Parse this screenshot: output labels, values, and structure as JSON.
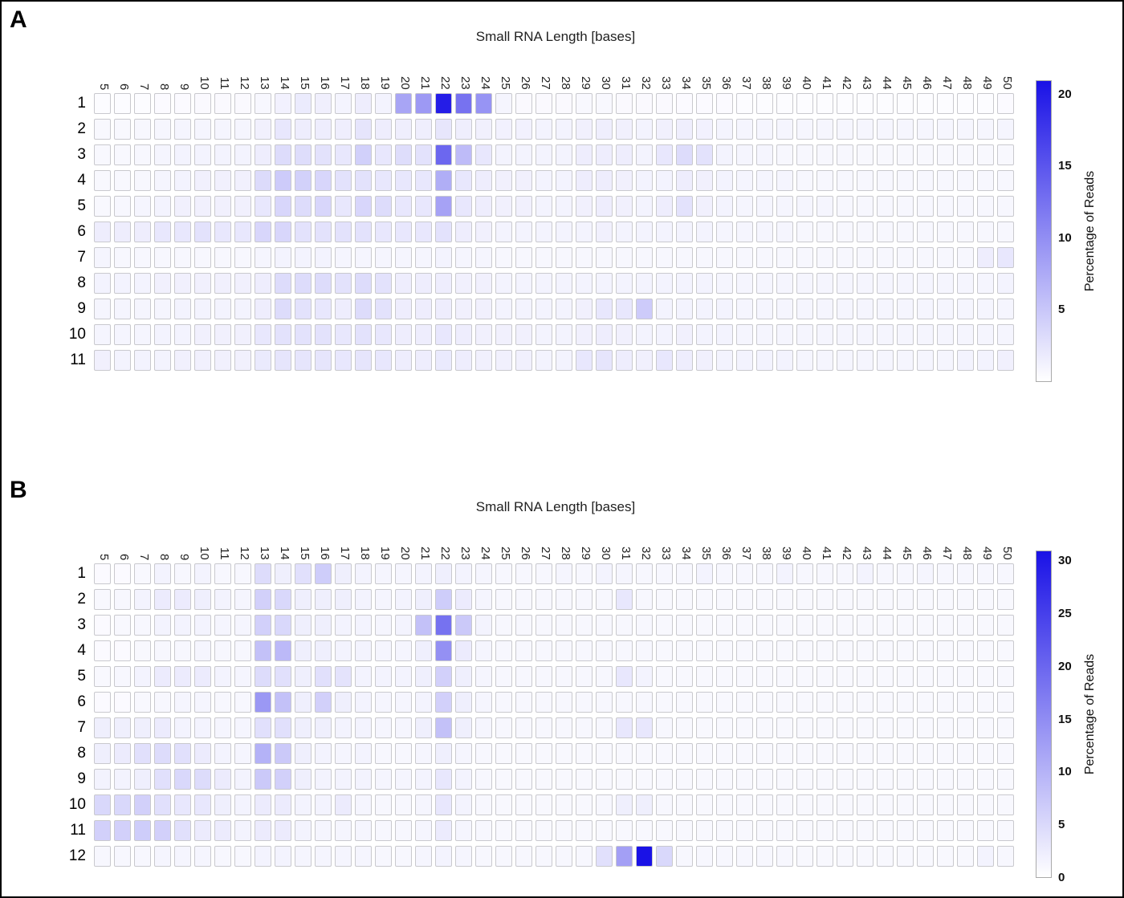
{
  "figure": {
    "panels": [
      "A",
      "B"
    ]
  },
  "chart_data": [
    {
      "type": "heatmap",
      "panel": "A",
      "title": "Small RNA Length [bases]",
      "colorbar_label": "Percentage of Reads",
      "x_ticks": [
        5,
        6,
        7,
        8,
        9,
        10,
        11,
        12,
        13,
        14,
        15,
        16,
        17,
        18,
        19,
        20,
        21,
        22,
        23,
        24,
        25,
        26,
        27,
        28,
        29,
        30,
        31,
        32,
        33,
        34,
        35,
        36,
        37,
        38,
        39,
        40,
        41,
        42,
        43,
        44,
        45,
        46,
        47,
        48,
        49,
        50
      ],
      "y_ticks": [
        "1",
        "2",
        "3",
        "4",
        "5",
        "6",
        "7",
        "8",
        "9",
        "10",
        "11"
      ],
      "vmin": 0,
      "vmax": 21,
      "colorbar_ticks": [
        20,
        15,
        10,
        5
      ],
      "min_color": "#ffffff",
      "max_color": "#1a12e6",
      "values": [
        [
          0.3,
          0.3,
          0.3,
          0.4,
          0.4,
          0.5,
          0.5,
          0.5,
          0.7,
          1.2,
          1.8,
          1.4,
          1.0,
          1.6,
          1.1,
          8,
          9,
          20,
          12.5,
          9.5,
          0.9,
          0.5,
          0.5,
          0.5,
          0.6,
          0.6,
          0.5,
          0.5,
          0.5,
          0.4,
          0.4,
          0.4,
          0.3,
          0.3,
          0.3,
          0.3,
          0.3,
          0.3,
          0.3,
          0.3,
          0.3,
          0.3,
          0.3,
          0.3,
          0.3,
          0.4
        ],
        [
          0.6,
          0.6,
          0.7,
          0.8,
          0.9,
          0.9,
          0.9,
          0.9,
          1.3,
          2.1,
          1.6,
          1.6,
          1.5,
          2.3,
          1.6,
          1.5,
          1.5,
          2.2,
          1.5,
          1.3,
          1.2,
          1.2,
          1.1,
          1.1,
          1.3,
          1.5,
          1.3,
          1.1,
          1.3,
          1.5,
          1.2,
          1.0,
          0.9,
          0.9,
          0.9,
          0.8,
          0.8,
          0.8,
          0.8,
          0.8,
          0.8,
          0.8,
          0.8,
          0.8,
          0.8,
          0.9
        ],
        [
          0.6,
          0.6,
          0.7,
          0.9,
          1.1,
          1.1,
          1.1,
          1.1,
          1.6,
          3.1,
          3.0,
          2.6,
          2.1,
          4.2,
          2.1,
          3.0,
          2.6,
          13.5,
          6.0,
          2.1,
          1.1,
          1.1,
          1.1,
          1.1,
          1.6,
          1.6,
          1.6,
          1.1,
          2.1,
          3.1,
          2.6,
          1.1,
          0.9,
          0.9,
          0.7,
          0.7,
          0.7,
          0.7,
          0.6,
          0.6,
          0.6,
          0.6,
          0.6,
          0.6,
          0.6,
          0.6
        ],
        [
          0.6,
          0.6,
          0.7,
          0.9,
          1.1,
          1.3,
          1.3,
          1.3,
          3.2,
          4.6,
          4.1,
          3.6,
          2.6,
          2.6,
          2.1,
          2.1,
          2.1,
          7.2,
          2.1,
          1.6,
          1.3,
          1.3,
          1.1,
          1.1,
          1.6,
          1.6,
          1.3,
          1.1,
          1.1,
          1.6,
          1.3,
          1.1,
          0.9,
          0.9,
          0.9,
          0.7,
          0.7,
          0.7,
          0.7,
          0.7,
          0.7,
          0.7,
          0.7,
          0.7,
          0.7,
          0.7
        ],
        [
          0.6,
          0.7,
          0.9,
          1.1,
          1.3,
          1.3,
          1.3,
          1.3,
          2.1,
          3.6,
          3.1,
          3.6,
          2.1,
          3.6,
          3.1,
          2.1,
          2.1,
          8.2,
          2.1,
          1.6,
          1.3,
          1.3,
          1.1,
          1.1,
          1.3,
          1.6,
          1.3,
          1.1,
          1.6,
          2.6,
          1.3,
          1.1,
          0.9,
          0.9,
          0.9,
          0.9,
          0.9,
          0.7,
          0.7,
          0.7,
          0.7,
          0.7,
          0.7,
          0.7,
          0.7,
          0.7
        ],
        [
          1.6,
          1.6,
          1.6,
          2.1,
          2.1,
          2.6,
          2.1,
          2.1,
          3.6,
          3.6,
          2.6,
          2.6,
          2.6,
          2.6,
          2.1,
          2.1,
          2.1,
          2.6,
          1.6,
          1.3,
          1.1,
          1.1,
          1.1,
          1.1,
          1.1,
          1.3,
          1.1,
          1.1,
          1.1,
          1.1,
          1.1,
          0.9,
          0.9,
          0.9,
          0.9,
          0.7,
          0.7,
          0.7,
          0.7,
          0.7,
          0.7,
          0.7,
          0.7,
          0.7,
          0.7,
          0.7
        ],
        [
          0.9,
          0.7,
          0.7,
          0.7,
          0.7,
          0.7,
          0.7,
          0.7,
          0.9,
          1.1,
          1.1,
          1.1,
          0.9,
          0.9,
          0.9,
          0.9,
          0.9,
          1.1,
          0.9,
          0.9,
          0.7,
          0.7,
          0.7,
          0.7,
          0.7,
          0.7,
          0.7,
          0.7,
          0.7,
          0.7,
          0.7,
          0.7,
          0.7,
          0.7,
          0.7,
          0.7,
          0.7,
          0.7,
          0.7,
          0.7,
          0.7,
          0.7,
          0.7,
          0.7,
          1.6,
          2.1
        ],
        [
          1.1,
          1.1,
          1.1,
          1.3,
          1.3,
          1.3,
          1.3,
          1.3,
          1.6,
          3.1,
          3.1,
          3.1,
          2.6,
          3.1,
          2.6,
          1.6,
          1.6,
          1.6,
          1.3,
          1.3,
          1.1,
          1.1,
          1.1,
          1.1,
          1.1,
          1.1,
          1.1,
          1.1,
          1.1,
          1.1,
          1.1,
          0.9,
          0.9,
          0.9,
          0.9,
          0.9,
          0.9,
          0.9,
          0.9,
          0.9,
          0.9,
          0.9,
          0.9,
          0.9,
          0.9,
          1.1
        ],
        [
          0.9,
          0.9,
          0.9,
          0.9,
          1.1,
          1.1,
          1.1,
          1.1,
          1.6,
          3.1,
          2.6,
          2.1,
          1.6,
          3.1,
          2.6,
          1.6,
          1.6,
          1.6,
          1.3,
          1.3,
          1.1,
          1.1,
          1.1,
          1.1,
          1.3,
          2.1,
          2.1,
          4.6,
          1.1,
          1.1,
          1.1,
          1.1,
          0.9,
          0.9,
          0.9,
          0.9,
          0.9,
          0.9,
          0.9,
          0.9,
          0.9,
          0.9,
          0.9,
          0.9,
          0.9,
          0.9
        ],
        [
          0.9,
          0.9,
          0.9,
          1.1,
          1.1,
          1.3,
          1.3,
          1.3,
          2.1,
          2.6,
          2.6,
          2.6,
          2.1,
          2.6,
          2.1,
          1.6,
          1.6,
          2.1,
          1.6,
          1.3,
          1.3,
          1.3,
          1.1,
          1.1,
          1.3,
          1.6,
          1.3,
          1.1,
          1.1,
          1.3,
          1.1,
          1.1,
          0.9,
          0.9,
          0.9,
          0.9,
          0.9,
          0.9,
          0.9,
          0.9,
          0.9,
          0.9,
          0.9,
          0.9,
          0.9,
          0.9
        ],
        [
          1.3,
          1.1,
          1.1,
          1.1,
          1.3,
          1.3,
          1.3,
          1.3,
          1.9,
          2.3,
          2.3,
          2.3,
          2.1,
          2.3,
          2.1,
          1.6,
          1.6,
          1.9,
          1.6,
          1.3,
          1.3,
          1.3,
          1.1,
          1.1,
          2.1,
          2.3,
          1.6,
          1.3,
          2.1,
          1.6,
          1.3,
          1.1,
          1.1,
          1.1,
          1.1,
          0.9,
          0.9,
          0.9,
          0.9,
          0.9,
          0.9,
          0.9,
          0.9,
          1.1,
          1.1,
          1.3
        ]
      ]
    },
    {
      "type": "heatmap",
      "panel": "B",
      "title": "Small RNA Length [bases]",
      "colorbar_label": "Percentage of Reads",
      "x_ticks": [
        5,
        6,
        7,
        8,
        9,
        10,
        11,
        12,
        13,
        14,
        15,
        16,
        17,
        18,
        19,
        20,
        21,
        22,
        23,
        24,
        25,
        26,
        27,
        28,
        29,
        30,
        31,
        32,
        33,
        34,
        35,
        36,
        37,
        38,
        39,
        40,
        41,
        42,
        43,
        44,
        45,
        46,
        47,
        48,
        49,
        50
      ],
      "y_ticks": [
        "1",
        "2",
        "3",
        "4",
        "5",
        "6",
        "7",
        "8",
        "9",
        "10",
        "11",
        "12"
      ],
      "vmin": 0,
      "vmax": 31,
      "colorbar_ticks": [
        30,
        25,
        20,
        15,
        10,
        5,
        0
      ],
      "min_color": "#ffffff",
      "max_color": "#1a12e6",
      "values": [
        [
          0.6,
          0.6,
          0.9,
          1.6,
          1.1,
          1.6,
          1.1,
          1.1,
          4.6,
          2.1,
          4.1,
          6.6,
          2.1,
          1.6,
          1.3,
          1.3,
          1.6,
          2.1,
          1.6,
          1.3,
          1.1,
          1.1,
          1.1,
          1.3,
          1.1,
          1.6,
          1.3,
          1.1,
          1.1,
          1.1,
          1.6,
          1.1,
          1.1,
          1.1,
          1.6,
          1.1,
          1.1,
          1.1,
          1.6,
          1.1,
          1.1,
          1.3,
          1.1,
          1.1,
          1.1,
          1.1
        ],
        [
          0.9,
          1.1,
          1.6,
          2.6,
          2.6,
          2.1,
          1.6,
          1.3,
          6.1,
          5.1,
          2.1,
          2.1,
          2.1,
          1.6,
          1.3,
          1.6,
          2.1,
          6.6,
          2.6,
          1.3,
          1.1,
          1.1,
          1.1,
          1.1,
          1.1,
          1.1,
          3.1,
          1.1,
          0.9,
          0.9,
          0.9,
          0.9,
          0.9,
          0.9,
          0.9,
          0.9,
          0.9,
          0.9,
          0.9,
          0.9,
          0.9,
          0.9,
          0.9,
          0.9,
          0.9,
          0.9
        ],
        [
          0.6,
          0.9,
          1.1,
          1.6,
          1.6,
          1.6,
          1.3,
          1.3,
          6.1,
          5.1,
          2.1,
          2.1,
          1.6,
          1.6,
          1.3,
          1.6,
          8.1,
          18.5,
          7.1,
          1.6,
          1.1,
          1.1,
          1.1,
          1.1,
          1.1,
          1.1,
          1.1,
          1.1,
          0.9,
          0.9,
          0.9,
          0.9,
          0.9,
          0.9,
          0.9,
          0.9,
          0.9,
          0.9,
          0.9,
          0.9,
          0.9,
          0.9,
          0.9,
          0.9,
          0.9,
          0.9
        ],
        [
          0.6,
          0.6,
          0.9,
          1.1,
          1.1,
          1.3,
          1.1,
          1.1,
          8.1,
          9.1,
          2.1,
          2.1,
          1.6,
          1.6,
          1.3,
          1.3,
          2.1,
          14.5,
          2.6,
          1.3,
          1.1,
          1.1,
          1.1,
          1.1,
          1.1,
          1.1,
          1.1,
          1.1,
          0.9,
          0.9,
          0.9,
          0.9,
          0.9,
          0.9,
          0.9,
          0.9,
          0.9,
          0.9,
          0.9,
          0.9,
          0.9,
          0.9,
          0.9,
          0.9,
          0.9,
          0.9
        ],
        [
          0.9,
          1.1,
          1.6,
          2.6,
          2.6,
          2.6,
          1.6,
          1.3,
          4.6,
          4.1,
          2.1,
          4.1,
          3.6,
          1.6,
          1.6,
          1.6,
          2.1,
          6.1,
          2.1,
          1.3,
          1.1,
          1.1,
          1.1,
          1.1,
          1.1,
          1.1,
          3.1,
          1.6,
          0.9,
          0.9,
          0.9,
          0.9,
          0.9,
          0.9,
          0.9,
          0.9,
          0.9,
          0.9,
          0.9,
          0.9,
          0.9,
          0.9,
          0.9,
          0.9,
          0.9,
          0.9
        ],
        [
          0.6,
          0.6,
          0.9,
          1.1,
          1.3,
          1.3,
          1.1,
          1.1,
          13.5,
          8.1,
          2.1,
          6.1,
          2.1,
          1.6,
          1.3,
          1.3,
          1.6,
          6.1,
          2.1,
          1.3,
          1.1,
          1.1,
          1.1,
          1.1,
          1.1,
          1.1,
          1.1,
          1.1,
          0.9,
          0.9,
          0.9,
          0.9,
          0.9,
          0.9,
          0.9,
          0.9,
          0.9,
          0.9,
          0.9,
          0.9,
          0.9,
          0.9,
          0.9,
          0.9,
          0.9,
          0.9
        ],
        [
          2.1,
          2.1,
          2.1,
          2.6,
          1.6,
          1.6,
          1.3,
          1.3,
          4.1,
          4.1,
          2.1,
          2.1,
          1.6,
          1.6,
          1.3,
          1.3,
          2.1,
          8.1,
          2.1,
          1.3,
          1.1,
          1.1,
          1.1,
          1.1,
          1.1,
          1.1,
          3.1,
          3.1,
          1.1,
          0.9,
          0.9,
          0.9,
          0.9,
          0.9,
          0.9,
          0.9,
          0.9,
          0.9,
          0.9,
          0.9,
          0.9,
          0.9,
          0.9,
          0.9,
          0.9,
          0.9
        ],
        [
          2.1,
          2.6,
          4.1,
          4.6,
          4.1,
          2.6,
          1.6,
          1.3,
          10.1,
          7.1,
          2.1,
          1.6,
          1.3,
          1.6,
          1.1,
          1.1,
          1.3,
          2.1,
          1.3,
          1.1,
          0.9,
          0.9,
          0.9,
          0.9,
          0.9,
          0.9,
          0.9,
          0.9,
          0.9,
          0.9,
          0.9,
          0.9,
          0.9,
          0.9,
          0.9,
          0.9,
          0.9,
          0.9,
          0.9,
          0.9,
          0.9,
          0.9,
          0.9,
          0.9,
          0.9,
          0.9
        ],
        [
          1.6,
          1.6,
          2.1,
          4.1,
          5.1,
          4.6,
          2.6,
          1.6,
          7.1,
          6.1,
          2.1,
          1.6,
          1.6,
          1.6,
          1.3,
          1.3,
          1.6,
          3.1,
          1.6,
          1.1,
          0.9,
          0.9,
          0.9,
          0.9,
          0.9,
          0.9,
          0.9,
          0.9,
          0.9,
          0.9,
          0.9,
          0.9,
          0.9,
          0.9,
          0.9,
          0.9,
          0.9,
          0.9,
          0.9,
          0.9,
          0.9,
          0.9,
          0.9,
          0.9,
          0.9,
          0.9
        ],
        [
          5.1,
          5.1,
          6.1,
          4.1,
          3.1,
          3.1,
          2.1,
          1.6,
          2.6,
          2.6,
          1.6,
          1.6,
          2.6,
          1.3,
          1.1,
          1.1,
          1.3,
          3.1,
          1.6,
          1.1,
          0.9,
          0.9,
          0.9,
          0.9,
          0.9,
          1.1,
          2.1,
          2.1,
          1.1,
          0.9,
          0.9,
          0.9,
          0.9,
          0.9,
          0.9,
          0.9,
          0.9,
          0.9,
          0.9,
          0.9,
          0.9,
          0.9,
          0.9,
          0.9,
          0.9,
          0.9
        ],
        [
          6.1,
          6.1,
          6.6,
          6.1,
          4.1,
          2.6,
          2.6,
          1.6,
          2.6,
          2.6,
          1.6,
          1.3,
          1.3,
          1.3,
          1.1,
          1.1,
          1.3,
          2.6,
          1.3,
          1.1,
          0.9,
          0.9,
          0.9,
          0.9,
          0.9,
          0.9,
          0.9,
          0.9,
          0.9,
          0.9,
          0.9,
          0.9,
          0.9,
          0.9,
          0.9,
          0.9,
          0.9,
          0.9,
          0.9,
          0.9,
          0.9,
          0.9,
          0.9,
          0.9,
          0.9,
          0.9
        ],
        [
          1.1,
          1.1,
          1.1,
          1.3,
          1.3,
          1.3,
          1.1,
          1.1,
          1.6,
          1.6,
          1.3,
          1.3,
          1.3,
          1.3,
          1.1,
          1.1,
          1.3,
          1.6,
          1.3,
          1.1,
          1.1,
          1.1,
          1.1,
          1.1,
          1.1,
          4.1,
          12.5,
          31,
          5.1,
          1.1,
          1.1,
          1.1,
          1.1,
          1.1,
          1.1,
          0.9,
          0.9,
          0.9,
          0.9,
          0.9,
          0.9,
          0.9,
          0.9,
          0.9,
          1.6,
          1.1
        ]
      ]
    }
  ]
}
